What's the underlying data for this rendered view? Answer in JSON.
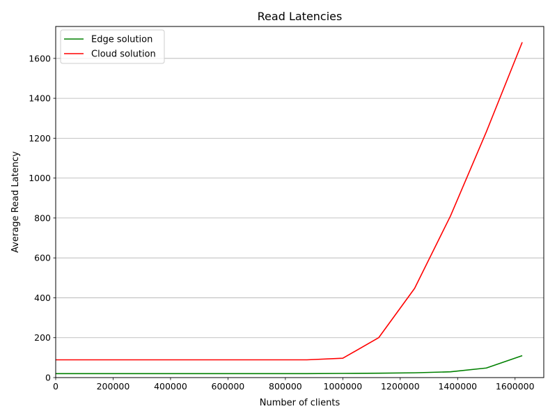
{
  "chart_data": {
    "type": "line",
    "title": "Read Latencies",
    "xlabel": "Number of clients",
    "ylabel": "Average Read Latency",
    "xlim": [
      0,
      1700000
    ],
    "ylim": [
      0,
      1760
    ],
    "xticks": [
      0,
      200000,
      400000,
      600000,
      800000,
      1000000,
      1200000,
      1400000,
      1600000
    ],
    "xtick_labels": [
      "0",
      "200000",
      "400000",
      "600000",
      "800000",
      "1000000",
      "1200000",
      "1400000",
      "1600000"
    ],
    "yticks": [
      0,
      200,
      400,
      600,
      800,
      1000,
      1200,
      1400,
      1600
    ],
    "ytick_labels": [
      "0",
      "200",
      "400",
      "600",
      "800",
      "1000",
      "1200",
      "1400",
      "1600"
    ],
    "grid": "horizontal",
    "legend_position": "top-left",
    "series": [
      {
        "name": "Edge solution",
        "color": "#008000",
        "x": [
          0,
          125000,
          250000,
          375000,
          500000,
          625000,
          750000,
          875000,
          1000000,
          1125000,
          1250000,
          1375000,
          1500000,
          1625000
        ],
        "y": [
          20,
          20,
          20,
          20,
          20,
          20,
          20,
          20,
          21,
          22,
          24,
          29,
          48,
          110
        ]
      },
      {
        "name": "Cloud solution",
        "color": "#ff0000",
        "x": [
          0,
          125000,
          250000,
          375000,
          500000,
          625000,
          750000,
          875000,
          1000000,
          1125000,
          1250000,
          1375000,
          1500000,
          1625000
        ],
        "y": [
          89,
          89,
          89,
          89,
          89,
          89,
          89,
          89,
          97,
          200,
          447,
          810,
          1232,
          1681
        ]
      }
    ]
  }
}
